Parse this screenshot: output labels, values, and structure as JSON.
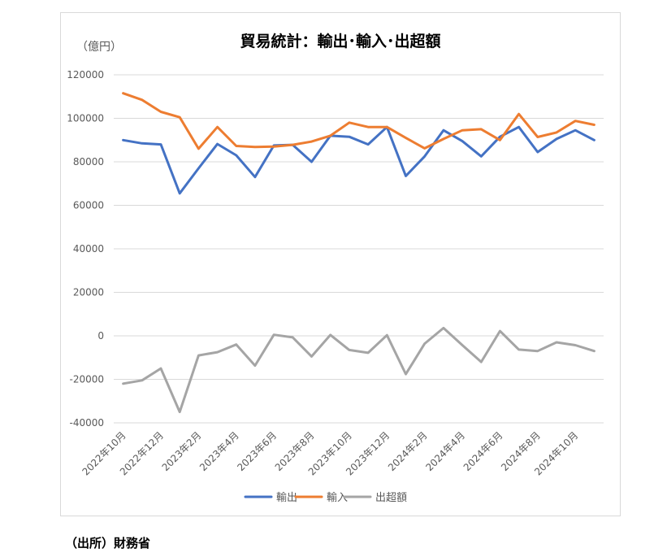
{
  "chart_title": "貿易統計：輸出･輸入･出超額",
  "unit_label": "（億円）",
  "source_note": "（出所）財務省",
  "chart_data": {
    "type": "line",
    "title": "貿易統計：輸出･輸入･出超額",
    "ylabel": "（億円）",
    "xlabel": "",
    "ylim": [
      -40000,
      120000
    ],
    "yticks": [
      -40000,
      -20000,
      0,
      20000,
      40000,
      60000,
      80000,
      100000,
      120000
    ],
    "grid": true,
    "legend_position": "bottom",
    "x": [
      "2022年10月",
      "2022年11月",
      "2022年12月",
      "2023年1月",
      "2023年2月",
      "2023年3月",
      "2023年4月",
      "2023年5月",
      "2023年6月",
      "2023年7月",
      "2023年8月",
      "2023年9月",
      "2023年10月",
      "2023年11月",
      "2023年12月",
      "2024年1月",
      "2024年2月",
      "2024年3月",
      "2024年4月",
      "2024年5月",
      "2024年6月",
      "2024年7月",
      "2024年8月",
      "2024年9月",
      "2024年10月",
      "2024年11月"
    ],
    "x_tick_labels": [
      "2022年10月",
      "2022年12月",
      "2023年2月",
      "2023年4月",
      "2023年6月",
      "2023年8月",
      "2023年10月",
      "2023年12月",
      "2024年2月",
      "2024年4月",
      "2024年6月",
      "2024年8月",
      "2024年10月"
    ],
    "series": [
      {
        "name": "輸出",
        "color": "#4472c4",
        "values": [
          90000,
          88500,
          88000,
          65500,
          77000,
          88200,
          83000,
          73000,
          87500,
          87800,
          80000,
          92000,
          91500,
          88000,
          96000,
          73500,
          82500,
          94500,
          89500,
          82500,
          91500,
          96000,
          84500,
          90500,
          94500,
          90000
        ]
      },
      {
        "name": "輸入",
        "color": "#ed7d31",
        "values": [
          111500,
          108500,
          103000,
          100500,
          86000,
          96000,
          87300,
          86800,
          87000,
          87800,
          89300,
          92000,
          98000,
          96000,
          96000,
          91000,
          86200,
          90500,
          94500,
          95000,
          90000,
          102000,
          91400,
          93500,
          98800,
          97000
        ]
      },
      {
        "name": "出超額",
        "color": "#a5a5a5",
        "values": [
          -22000,
          -20500,
          -15000,
          -35000,
          -9000,
          -7500,
          -4000,
          -13700,
          500,
          -700,
          -9500,
          400,
          -6500,
          -7800,
          300,
          -17600,
          -3600,
          3600,
          -4300,
          -12000,
          2200,
          -6300,
          -7000,
          -3000,
          -4300,
          -7000
        ]
      }
    ]
  }
}
